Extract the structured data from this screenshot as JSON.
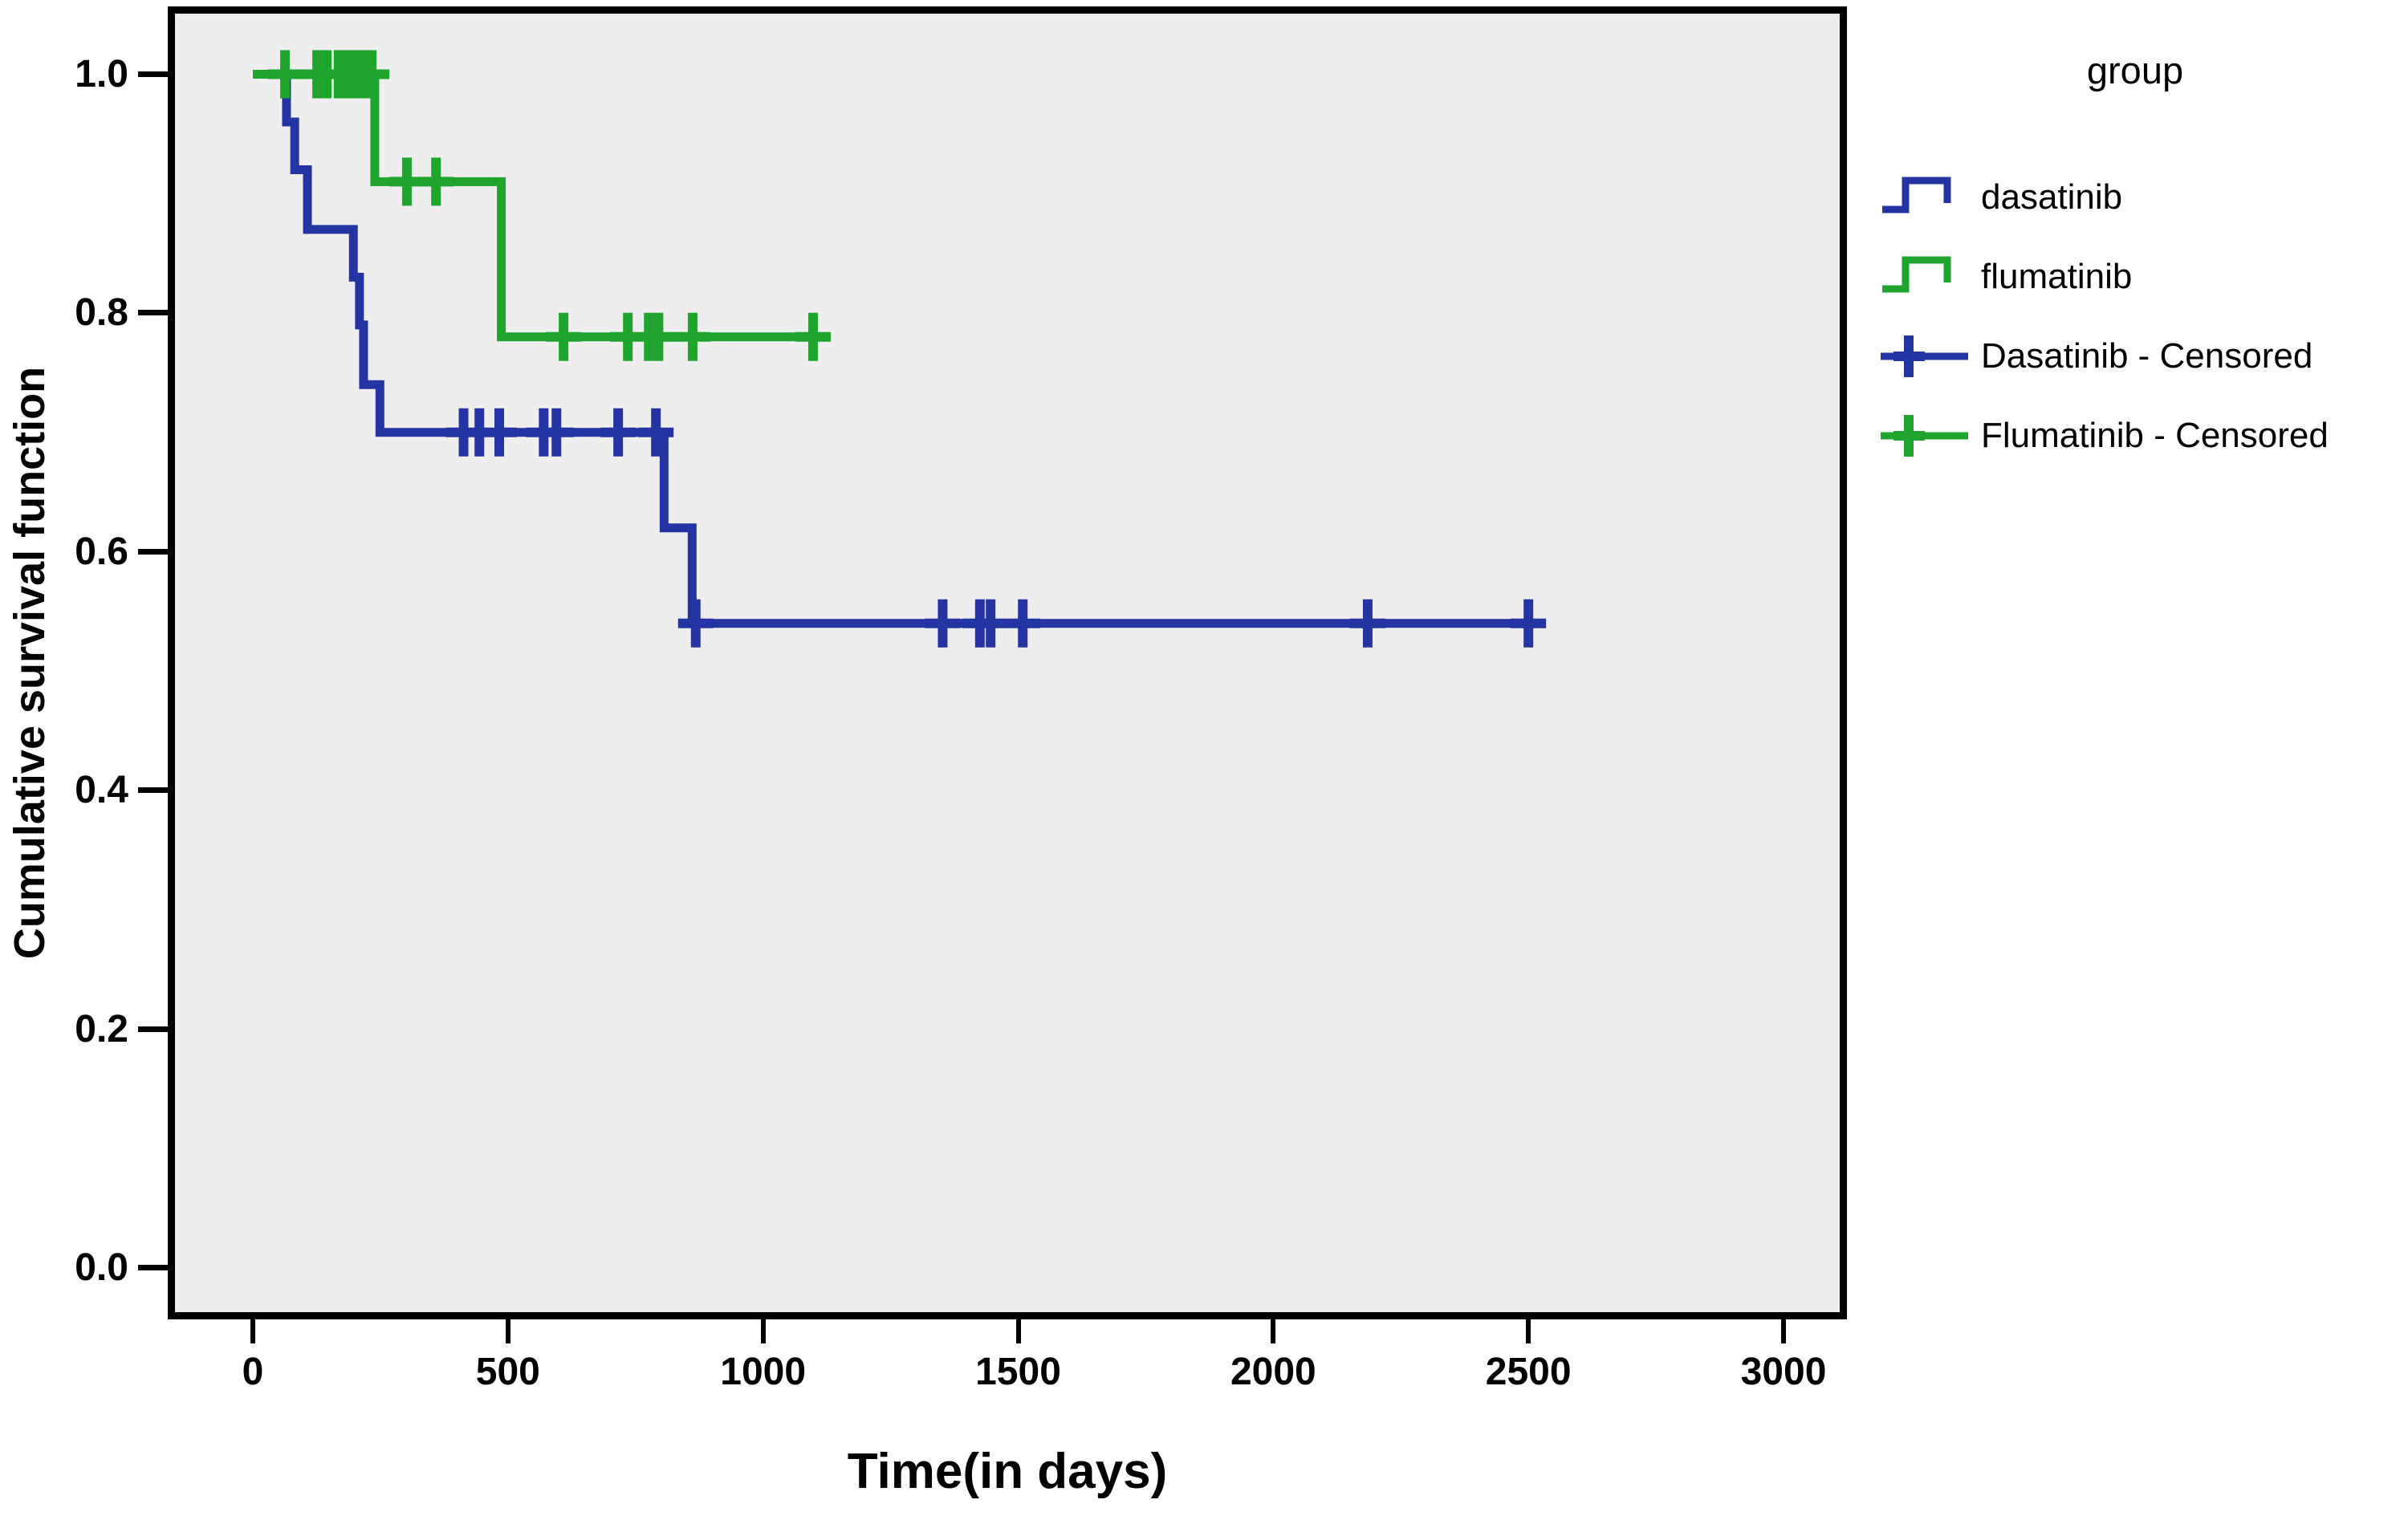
{
  "figure": {
    "background": "#ffffff",
    "plot_background": "#efeeee",
    "frame_color": "#000000"
  },
  "colors": {
    "dasatinib": "#2434a2",
    "flumatinib": "#1fa42d",
    "text": "#000000"
  },
  "x_axis": {
    "title": "Time(in days)",
    "ticks": [
      {
        "label": "0",
        "value": 0
      },
      {
        "label": "500",
        "value": 500
      },
      {
        "label": "1000",
        "value": 1000
      },
      {
        "label": "1500",
        "value": 1500
      },
      {
        "label": "2000",
        "value": 2000
      },
      {
        "label": "2500",
        "value": 2500
      },
      {
        "label": "3000",
        "value": 3000
      }
    ]
  },
  "y_axis": {
    "title": "Cumulative survival function",
    "ticks": [
      {
        "label": "1.0",
        "value": 1.0
      },
      {
        "label": "0.8",
        "value": 0.8
      },
      {
        "label": "0.6",
        "value": 0.6
      },
      {
        "label": "0.4",
        "value": 0.4
      },
      {
        "label": "0.2",
        "value": 0.2
      },
      {
        "label": "0.0",
        "value": 0.0
      }
    ]
  },
  "legend": {
    "title": "group",
    "items": [
      {
        "label": "dasatinib",
        "swatch": "step-line",
        "color": "#2434a2"
      },
      {
        "label": "flumatinib",
        "swatch": "step-line",
        "color": "#1fa42d"
      },
      {
        "label": "Dasatinib - Censored",
        "swatch": "plus-line",
        "color": "#2434a2"
      },
      {
        "label": "Flumatinib - Censored",
        "swatch": "plus-line",
        "color": "#1fa42d"
      }
    ]
  },
  "chart_data": {
    "type": "line",
    "subtype": "kaplan-meier-step",
    "title": "",
    "xlabel": "Time(in days)",
    "ylabel": "Cumulative survival function",
    "xlim": [
      0,
      3000
    ],
    "ylim": [
      0.0,
      1.0
    ],
    "grid": false,
    "legend_position": "right",
    "legend_title": "group",
    "series": [
      {
        "name": "dasatinib",
        "color": "#2434a2",
        "steps_day_survival": [
          [
            0,
            1.0
          ],
          [
            66,
            0.96
          ],
          [
            82,
            0.92
          ],
          [
            107,
            0.87
          ],
          [
            197,
            0.83
          ],
          [
            209,
            0.79
          ],
          [
            217,
            0.74
          ],
          [
            249,
            0.7
          ],
          [
            806,
            0.62
          ],
          [
            861,
            0.54
          ]
        ],
        "end_day": 2522,
        "censored_day_survival": [
          [
            413,
            0.7
          ],
          [
            444,
            0.7
          ],
          [
            483,
            0.7
          ],
          [
            570,
            0.7
          ],
          [
            595,
            0.7
          ],
          [
            716,
            0.7
          ],
          [
            790,
            0.7
          ],
          [
            868,
            0.54
          ],
          [
            1352,
            0.54
          ],
          [
            1425,
            0.54
          ],
          [
            1446,
            0.54
          ],
          [
            1509,
            0.54
          ],
          [
            2185,
            0.54
          ],
          [
            2500,
            0.54
          ]
        ]
      },
      {
        "name": "flumatinib",
        "color": "#1fa42d",
        "steps_day_survival": [
          [
            0,
            1.0
          ],
          [
            239,
            0.91
          ],
          [
            487,
            0.78
          ]
        ],
        "end_day": 1130,
        "censored_day_survival": [
          [
            63,
            1.0
          ],
          [
            126,
            1.0
          ],
          [
            145,
            1.0
          ],
          [
            168,
            1.0
          ],
          [
            184,
            1.0
          ],
          [
            200,
            1.0
          ],
          [
            216,
            1.0
          ],
          [
            233,
            1.0
          ],
          [
            302,
            0.91
          ],
          [
            359,
            0.91
          ],
          [
            609,
            0.78
          ],
          [
            735,
            0.78
          ],
          [
            776,
            0.78
          ],
          [
            795,
            0.78
          ],
          [
            862,
            0.78
          ],
          [
            1098,
            0.78
          ]
        ]
      }
    ]
  }
}
